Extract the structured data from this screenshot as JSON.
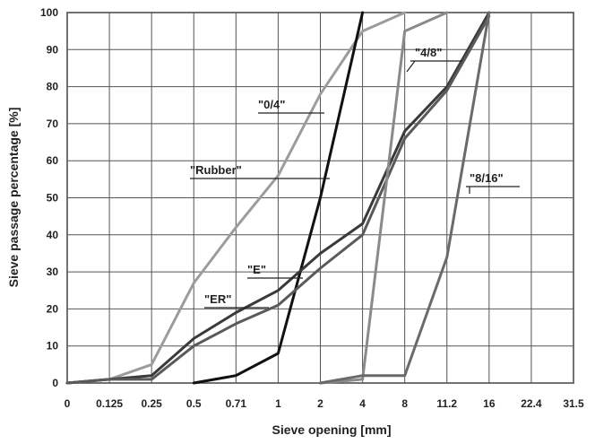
{
  "chart_data": {
    "type": "line",
    "title": "",
    "xlabel": "Sieve opening [mm]",
    "ylabel": "Sieve passage percentage [%]",
    "x_categories": [
      "0",
      "0.125",
      "0.25",
      "0.5",
      "0.71",
      "1",
      "2",
      "4",
      "8",
      "11.2",
      "16",
      "22.4",
      "31.5"
    ],
    "y_ticks": [
      0,
      10,
      20,
      30,
      40,
      50,
      60,
      70,
      80,
      90,
      100
    ],
    "ylim": [
      0,
      100
    ],
    "grid": true,
    "legend": "inline labels",
    "series": [
      {
        "name": "\"0/4\"",
        "color": "#9c9c9c",
        "x": [
          "0",
          "0.125",
          "0.25",
          "0.5",
          "0.71",
          "1",
          "2",
          "4",
          "8"
        ],
        "values": [
          0,
          1,
          5,
          27,
          42,
          56,
          78,
          95,
          100
        ]
      },
      {
        "name": "\"Rubber\"",
        "color": "#111111",
        "x": [
          "0.5",
          "0.71",
          "1",
          "2",
          "4"
        ],
        "values": [
          0,
          2,
          8,
          50,
          100
        ]
      },
      {
        "name": "\"E\"",
        "color": "#3a3a3a",
        "x": [
          "0",
          "0.125",
          "0.25",
          "0.5",
          "0.71",
          "1",
          "2",
          "4",
          "8",
          "11.2",
          "16"
        ],
        "values": [
          0,
          1,
          2,
          12,
          19,
          25,
          35,
          43,
          68,
          80,
          100
        ]
      },
      {
        "name": "\"ER\"",
        "color": "#5a5a5a",
        "x": [
          "0",
          "0.125",
          "0.25",
          "0.5",
          "0.71",
          "1",
          "2",
          "4",
          "8",
          "11.2",
          "16"
        ],
        "values": [
          0,
          1,
          1,
          10,
          16,
          21,
          31,
          40,
          66,
          79,
          99
        ]
      },
      {
        "name": "\"4/8\"",
        "color": "#8a8a8a",
        "x": [
          "2",
          "4",
          "8",
          "11.2"
        ],
        "values": [
          0,
          1,
          95,
          100
        ]
      },
      {
        "name": "\"8/16\"",
        "color": "#6a6a6a",
        "x": [
          "2",
          "4",
          "8",
          "11.2",
          "16"
        ],
        "values": [
          0,
          2,
          2,
          34,
          100
        ]
      }
    ],
    "labels": [
      {
        "series": "\"0/4\"",
        "text": "\"0/4\""
      },
      {
        "series": "\"Rubber\"",
        "text": "\"Rubber\""
      },
      {
        "series": "\"E\"",
        "text": "\"E\""
      },
      {
        "series": "\"ER\"",
        "text": "\"ER\""
      },
      {
        "series": "\"4/8\"",
        "text": "\"4/8\""
      },
      {
        "series": "\"8/16\"",
        "text": "\"8/16\""
      }
    ]
  }
}
